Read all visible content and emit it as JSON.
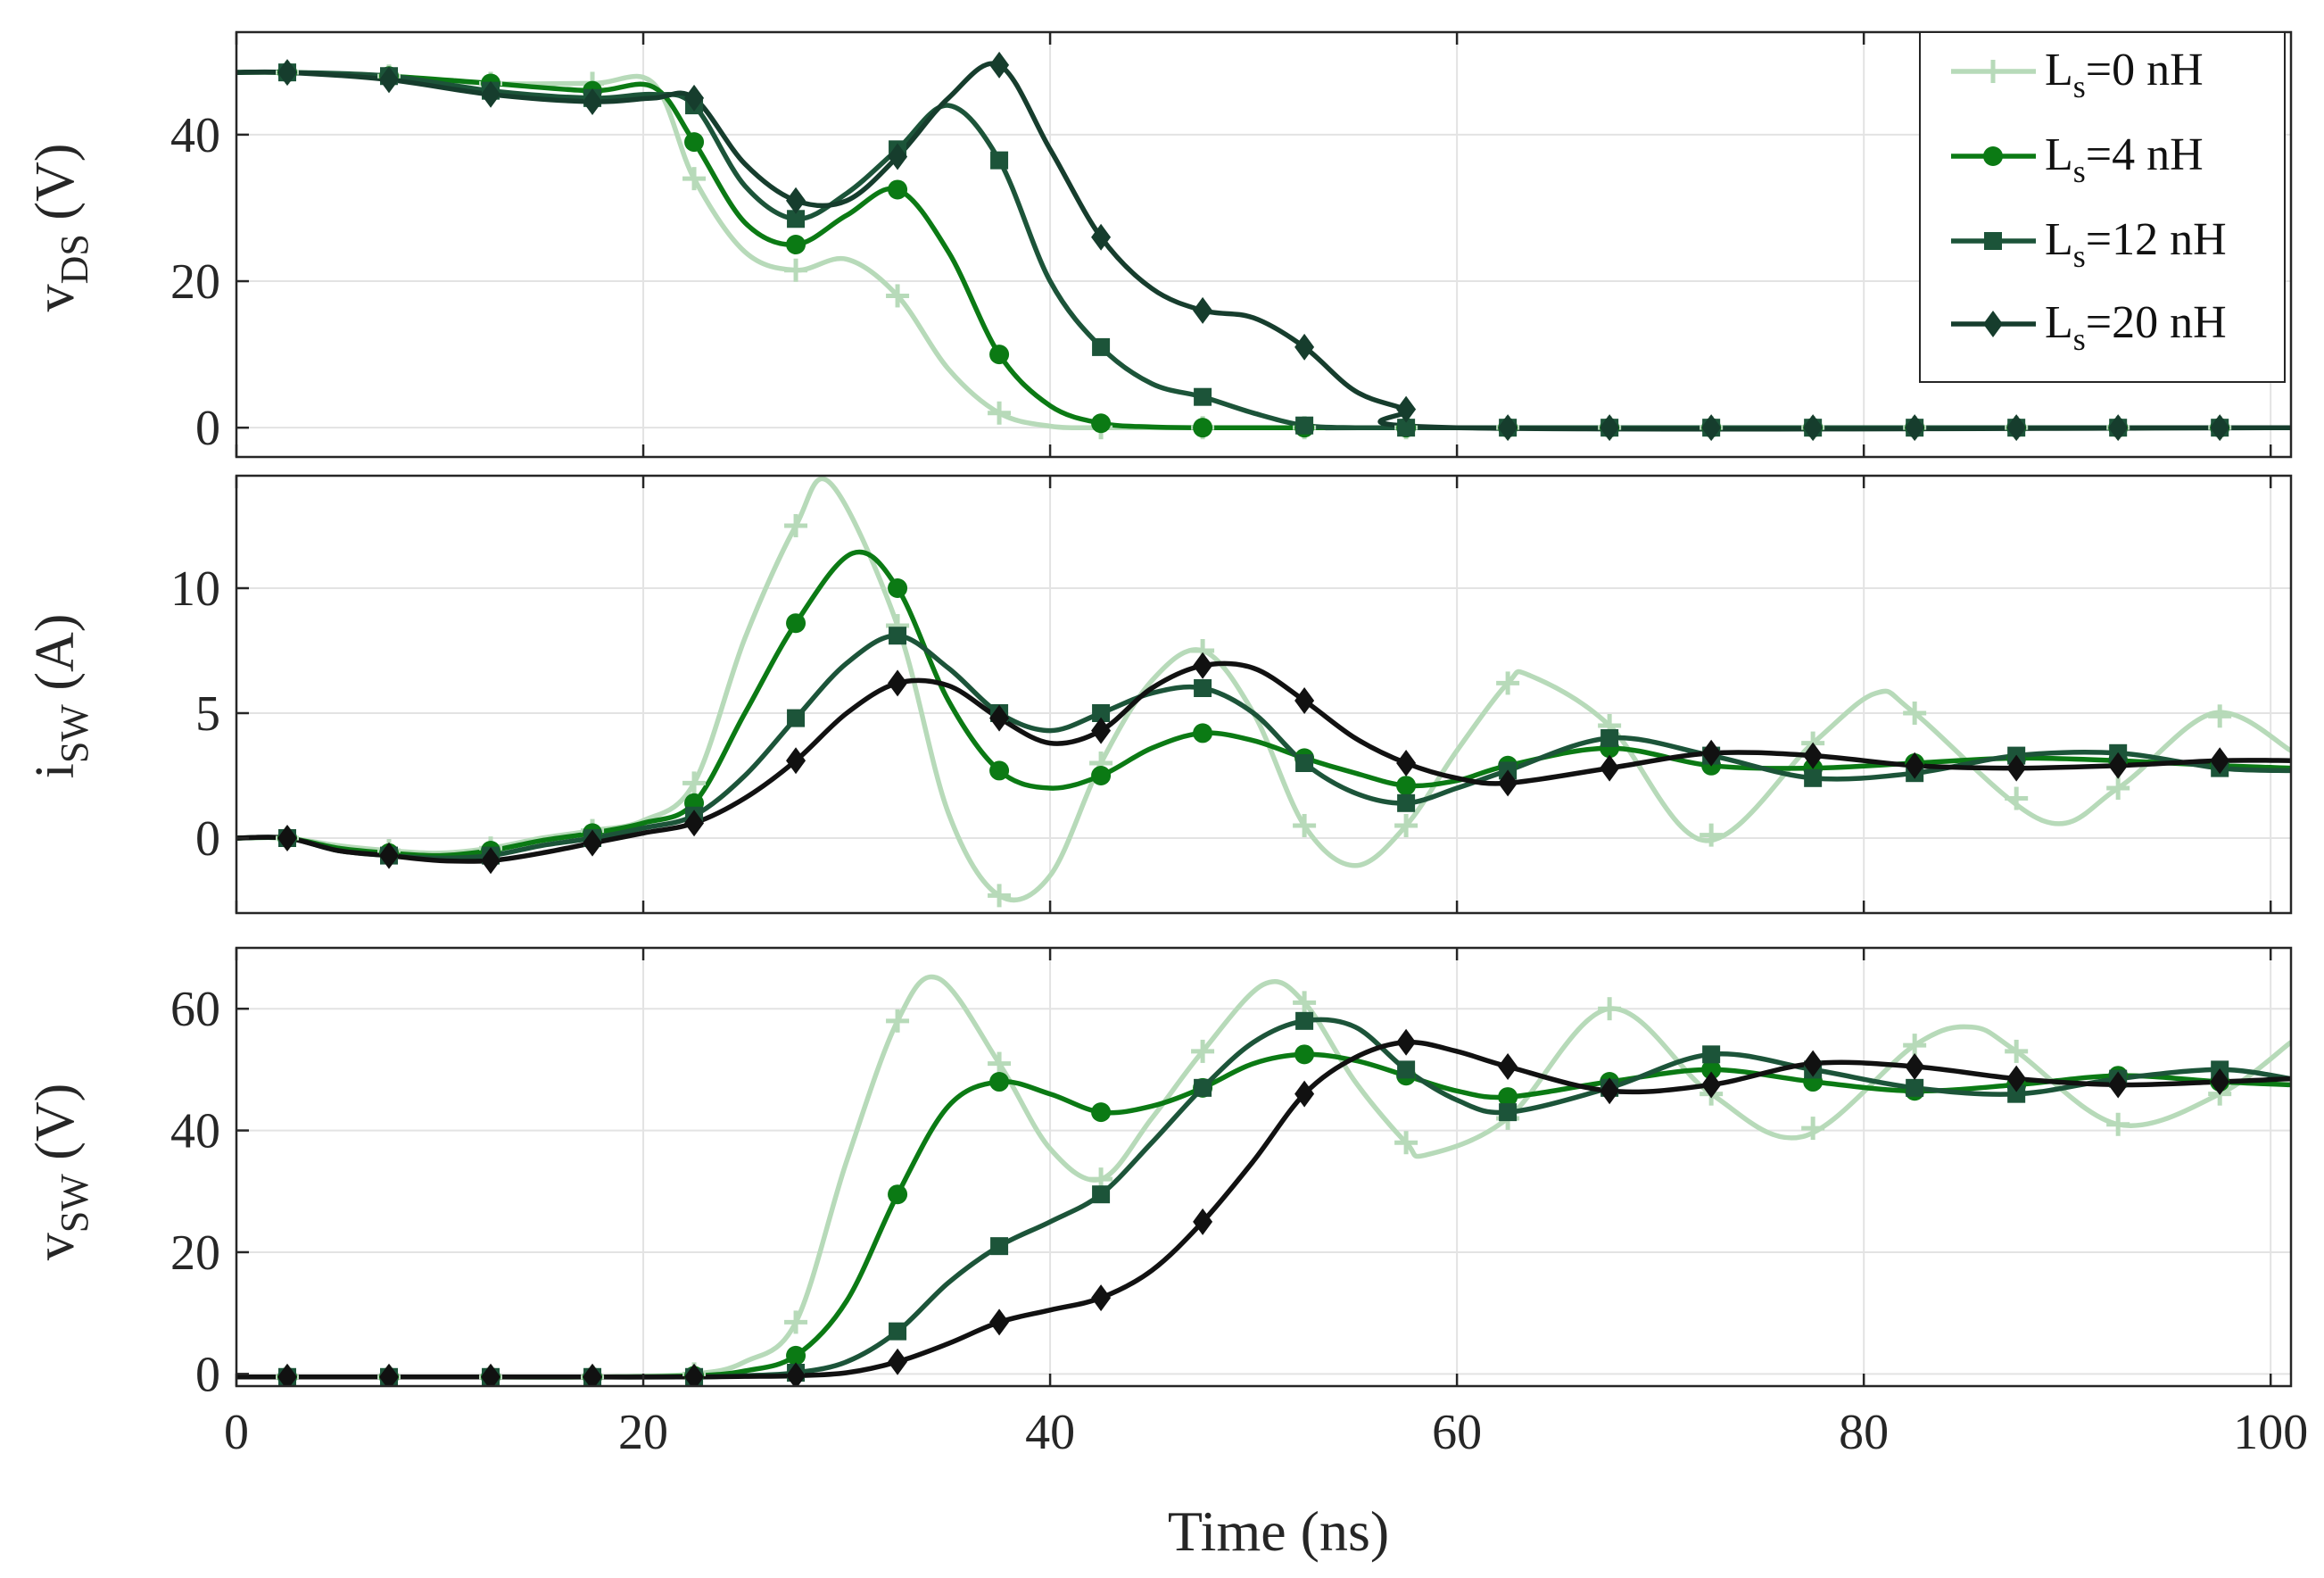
{
  "chart_data": [
    {
      "type": "line",
      "panel": "top",
      "ylabel_main": "v",
      "ylabel_sub": "DS",
      "ylabel_unit": " (V)",
      "ylim": [
        -4,
        54
      ],
      "yticks": [
        0,
        20,
        40
      ],
      "xlim": [
        0,
        101
      ],
      "grid": true,
      "legend": "top-right",
      "series": [
        {
          "name_main": "L",
          "name_sub": "s",
          "name_rest": "=0 nH",
          "color": "#b7dab9",
          "marker": "plus",
          "x": [
            0,
            2.5,
            7.5,
            12.5,
            17.5,
            20.5,
            22.5,
            25,
            27.5,
            30,
            32.5,
            35,
            37.5,
            40,
            42.5,
            45,
            50,
            101
          ],
          "y": [
            48.5,
            48.5,
            48,
            47,
            47,
            47,
            34,
            24,
            21.5,
            23,
            18,
            8,
            2,
            0.2,
            0,
            0,
            0,
            0
          ]
        },
        {
          "name_main": "L",
          "name_sub": "s",
          "name_rest": "=4 nH",
          "color": "#0b7a14",
          "marker": "circle",
          "x": [
            0,
            2.5,
            7.5,
            12.5,
            17.5,
            20.5,
            22.5,
            25,
            27.5,
            30,
            32.5,
            35,
            37.5,
            40,
            42.5,
            45,
            47.5,
            52.5,
            101
          ],
          "y": [
            48.5,
            48.5,
            48,
            47,
            46,
            46.5,
            39,
            28,
            25,
            29,
            32.5,
            24,
            10,
            3,
            0.6,
            0.1,
            0,
            0,
            0
          ]
        },
        {
          "name_main": "L",
          "name_sub": "s",
          "name_rest": "=12 nH",
          "color": "#1c5439",
          "marker": "square",
          "x": [
            0,
            2.5,
            7.5,
            12.5,
            17.5,
            20.5,
            22.5,
            25,
            27.5,
            30,
            32.5,
            35,
            37.5,
            40,
            42.5,
            45,
            47.5,
            50,
            52.5,
            55,
            57.5,
            101
          ],
          "y": [
            48.5,
            48.5,
            48,
            46,
            45,
            45.5,
            44,
            33,
            28.5,
            32,
            38,
            44,
            36.5,
            20,
            11,
            6,
            4.2,
            2,
            0.3,
            0,
            0,
            0
          ]
        },
        {
          "name_main": "L",
          "name_sub": "s",
          "name_rest": "=20 nH",
          "color": "#163d2d",
          "marker": "diamond",
          "x": [
            0,
            2.5,
            7.5,
            12.5,
            17.5,
            20.5,
            22.5,
            25,
            27.5,
            30,
            32.5,
            35,
            37.5,
            40,
            42.5,
            45,
            47.5,
            50,
            52.5,
            55,
            57.5,
            60,
            101
          ],
          "y": [
            48.5,
            48.5,
            47.5,
            45.5,
            44.5,
            45,
            45,
            36,
            31,
            31,
            37,
            45,
            49.5,
            38,
            26,
            19,
            16,
            15,
            11,
            5,
            2.5,
            0,
            0
          ]
        }
      ]
    },
    {
      "type": "line",
      "panel": "middle",
      "ylabel_main": "i",
      "ylabel_sub": "SW",
      "ylabel_unit": " (A)",
      "ylim": [
        -3,
        14.5
      ],
      "yticks": [
        0,
        5,
        10
      ],
      "xlim": [
        0,
        101
      ],
      "grid": true,
      "series": [
        {
          "name": "Ls=0 nH",
          "color": "#b7dab9",
          "marker": "plus",
          "x": [
            0,
            2.5,
            5,
            7.5,
            10,
            12.5,
            15,
            17.5,
            20,
            22.5,
            25,
            27.5,
            29.2,
            32.5,
            35,
            37.5,
            40,
            42.5,
            45,
            47.5,
            50,
            52.5,
            55,
            57.5,
            60,
            62.5,
            63.6,
            67.5,
            72.2,
            77.5,
            80.6,
            82.5,
            88.8,
            92.5,
            97.2,
            101
          ],
          "y": [
            0,
            0,
            -0.3,
            -0.5,
            -0.6,
            -0.4,
            0,
            0.3,
            0.7,
            2.2,
            8,
            12.5,
            14.2,
            8.5,
            1,
            -2.3,
            -1.5,
            3,
            6.3,
            7.5,
            5,
            0.5,
            -1.1,
            0.5,
            3.5,
            6.2,
            6.5,
            4.5,
            -0.1,
            3.8,
            5.8,
            5,
            0.7,
            2,
            5,
            3.5
          ]
        },
        {
          "name": "Ls=4 nH",
          "color": "#0b7a14",
          "marker": "circle",
          "x": [
            0,
            2.5,
            5,
            7.5,
            10,
            12.5,
            15,
            17.5,
            20,
            22.5,
            25,
            27.5,
            30.3,
            32.5,
            35,
            37.5,
            40,
            42.5,
            45,
            47.5,
            50,
            52.5,
            55,
            57.5,
            60,
            62.5,
            67.5,
            72.5,
            77.5,
            82.5,
            87.5,
            92.5,
            97.5,
            101
          ],
          "y": [
            0,
            0,
            -0.4,
            -0.6,
            -0.7,
            -0.5,
            -0.1,
            0.2,
            0.6,
            1.4,
            5,
            8.6,
            11.4,
            10,
            5.5,
            2.7,
            2,
            2.5,
            3.6,
            4.2,
            3.9,
            3.2,
            2.6,
            2.1,
            2.3,
            2.9,
            3.6,
            2.9,
            2.8,
            3,
            3.2,
            3.1,
            2.9,
            2.8
          ]
        },
        {
          "name": "Ls=12 nH",
          "color": "#1c5439",
          "marker": "square",
          "x": [
            0,
            2.5,
            5,
            7.5,
            10,
            12.5,
            15,
            17.5,
            20,
            22.5,
            25,
            27.5,
            30,
            32.5,
            35,
            37.5,
            40,
            42.5,
            45,
            47.5,
            50,
            52.5,
            55,
            57.5,
            60,
            62.5,
            67.5,
            72.5,
            77.5,
            82.5,
            87.5,
            92.5,
            97.5,
            101
          ],
          "y": [
            0,
            0,
            -0.5,
            -0.7,
            -0.8,
            -0.7,
            -0.3,
            0,
            0.4,
            0.9,
            2.5,
            4.8,
            7,
            8.1,
            6.8,
            5,
            4.3,
            5,
            5.8,
            6,
            5,
            3,
            1.8,
            1.4,
            2,
            2.7,
            4,
            3.3,
            2.4,
            2.6,
            3.3,
            3.4,
            2.8,
            2.7
          ]
        },
        {
          "name": "Ls=20 nH",
          "color": "#111111",
          "marker": "diamond",
          "x": [
            0,
            2.5,
            5,
            7.5,
            10,
            12.5,
            15,
            17.5,
            20,
            22.5,
            25,
            27.5,
            30,
            32.5,
            35,
            37.5,
            40,
            42.5,
            45,
            47.5,
            50,
            52.5,
            55,
            57.5,
            60,
            62.5,
            67.5,
            72.5,
            77.5,
            82.5,
            87.5,
            92.5,
            97.5,
            101
          ],
          "y": [
            0,
            0,
            -0.5,
            -0.7,
            -0.9,
            -0.9,
            -0.6,
            -0.2,
            0.2,
            0.6,
            1.6,
            3.1,
            5,
            6.2,
            6.1,
            4.8,
            3.8,
            4.3,
            6,
            6.9,
            6.8,
            5.5,
            4,
            3,
            2.4,
            2.2,
            2.8,
            3.4,
            3.3,
            2.9,
            2.8,
            2.9,
            3.1,
            3.1
          ]
        }
      ]
    },
    {
      "type": "line",
      "panel": "bottom",
      "ylabel_main": "v",
      "ylabel_sub": "SW",
      "ylabel_unit": " (V)",
      "ylim": [
        -2,
        70
      ],
      "yticks": [
        0,
        20,
        40,
        60
      ],
      "xlim": [
        0,
        101
      ],
      "xticks": [
        0,
        20,
        40,
        60,
        80,
        100
      ],
      "xlabel": "Time (ns)",
      "grid": true,
      "series": [
        {
          "name": "Ls=0 nH",
          "color": "#b7dab9",
          "marker": "plus",
          "x": [
            0,
            2.5,
            7.5,
            12.5,
            17.5,
            22.5,
            25,
            27.5,
            30,
            32.5,
            34.5,
            37.5,
            40,
            42.5,
            45,
            47.5,
            50.5,
            52.5,
            55,
            57.5,
            58.5,
            62.5,
            67.5,
            72.5,
            77,
            82.5,
            85.3,
            87.5,
            92.5,
            97.5,
            101
          ],
          "y": [
            -0.5,
            -0.5,
            -0.5,
            -0.5,
            -0.5,
            0,
            2,
            8.5,
            35,
            58,
            65,
            51,
            37,
            32,
            42,
            53,
            64,
            61,
            48,
            38,
            36,
            42,
            60,
            46,
            39,
            54,
            57,
            53,
            41,
            46,
            54.5
          ]
        },
        {
          "name": "Ls=4 nH",
          "color": "#0b7a14",
          "marker": "circle",
          "x": [
            0,
            2.5,
            7.5,
            12.5,
            17.5,
            22.5,
            25,
            27.5,
            30,
            32.5,
            35,
            37.5,
            40,
            42.5,
            45,
            47.5,
            50,
            52.5,
            55,
            57.5,
            60,
            62.5,
            67.5,
            72.5,
            77.5,
            82.5,
            87.5,
            92.5,
            97.5,
            101
          ],
          "y": [
            -0.5,
            -0.5,
            -0.5,
            -0.5,
            -0.5,
            -0.3,
            0.5,
            3,
            12,
            29.5,
            44,
            48,
            46,
            43,
            44,
            47,
            51,
            52.5,
            51.5,
            49,
            46.5,
            45.5,
            48,
            50,
            48,
            46.5,
            47.5,
            49,
            48,
            47.5
          ]
        },
        {
          "name": "Ls=12 nH",
          "color": "#1c5439",
          "marker": "square",
          "x": [
            0,
            2.5,
            7.5,
            12.5,
            17.5,
            22.5,
            25,
            27.5,
            30,
            32.5,
            35,
            37.5,
            40,
            42.5,
            45,
            47.5,
            50,
            52.5,
            55,
            57.5,
            60,
            62.5,
            67.5,
            72.5,
            77.5,
            82.5,
            87.5,
            92.5,
            97.5,
            101
          ],
          "y": [
            -0.5,
            -0.5,
            -0.5,
            -0.5,
            -0.5,
            -0.5,
            -0.3,
            0.2,
            2,
            7,
            15,
            21,
            25,
            29.5,
            38,
            47,
            54.5,
            58,
            57,
            50,
            45,
            43,
            47,
            52.5,
            50,
            47,
            46,
            48.5,
            50,
            48.5
          ]
        },
        {
          "name": "Ls=20 nH",
          "color": "#111111",
          "marker": "diamond",
          "x": [
            0,
            2.5,
            7.5,
            12.5,
            17.5,
            22.5,
            25,
            27.5,
            30,
            32.5,
            35,
            37.5,
            40,
            42.5,
            45,
            47.5,
            50,
            52.5,
            55,
            57.5,
            60,
            62.5,
            67.5,
            72.5,
            77.5,
            82.5,
            87.5,
            92.5,
            97.5,
            101
          ],
          "y": [
            -0.5,
            -0.5,
            -0.5,
            -0.5,
            -0.5,
            -0.5,
            -0.4,
            -0.3,
            0.2,
            2,
            5,
            8.5,
            10.5,
            12.5,
            17,
            25,
            35,
            46,
            52,
            54.5,
            53,
            50.5,
            46.5,
            47.5,
            51,
            50.5,
            48.5,
            47.5,
            48,
            48.5
          ]
        }
      ]
    }
  ]
}
